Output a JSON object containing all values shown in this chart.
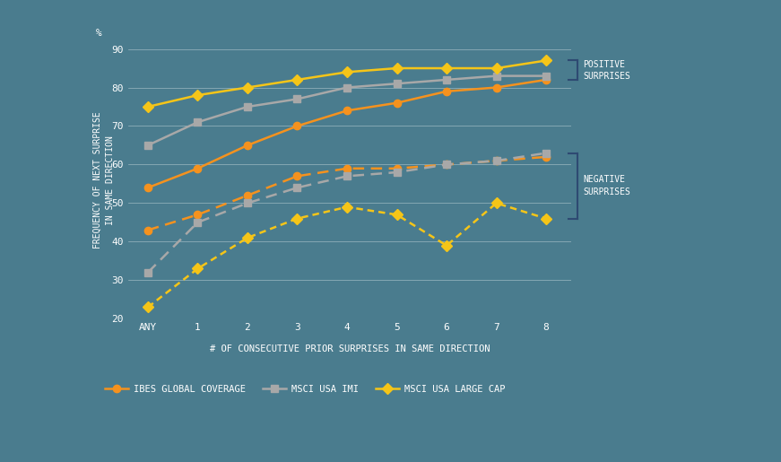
{
  "x_labels": [
    "ANY",
    "1",
    "2",
    "3",
    "4",
    "5",
    "6",
    "7",
    "8"
  ],
  "x_values": [
    0,
    1,
    2,
    3,
    4,
    5,
    6,
    7,
    8
  ],
  "positive_ibes": [
    54,
    59,
    65,
    70,
    74,
    76,
    79,
    80,
    82
  ],
  "positive_msci_imi": [
    65,
    71,
    75,
    77,
    80,
    81,
    82,
    83,
    83
  ],
  "positive_msci_large": [
    75,
    78,
    80,
    82,
    84,
    85,
    85,
    85,
    87
  ],
  "negative_ibes": [
    43,
    47,
    52,
    57,
    59,
    59,
    60,
    61,
    62
  ],
  "negative_msci_imi": [
    32,
    45,
    50,
    54,
    57,
    58,
    60,
    61,
    63
  ],
  "negative_msci_large": [
    23,
    33,
    41,
    46,
    49,
    47,
    39,
    50,
    46
  ],
  "color_orange": "#F5921E",
  "color_gray": "#A8A8A8",
  "color_yellow": "#F5C518",
  "bg_color": "#4A7C8E",
  "label_ibes": "IBES GLOBAL COVERAGE",
  "label_msci_imi": "MSCI USA IMI",
  "label_msci_large": "MSCI USA LARGE CAP",
  "ylabel": "FREQUENCY OF NEXT SURPRISE\nIN SAME DIRECTION",
  "xlabel": "# OF CONSECUTIVE PRIOR SURPRISES IN SAME DIRECTION",
  "ylim": [
    20,
    92
  ],
  "yticks": [
    20,
    30,
    40,
    50,
    60,
    70,
    80,
    90
  ],
  "bracket_color": "#2E4A72",
  "positive_label": "POSITIVE\nSURPRISES",
  "negative_label": "NEGATIVE\nSURPRISES"
}
